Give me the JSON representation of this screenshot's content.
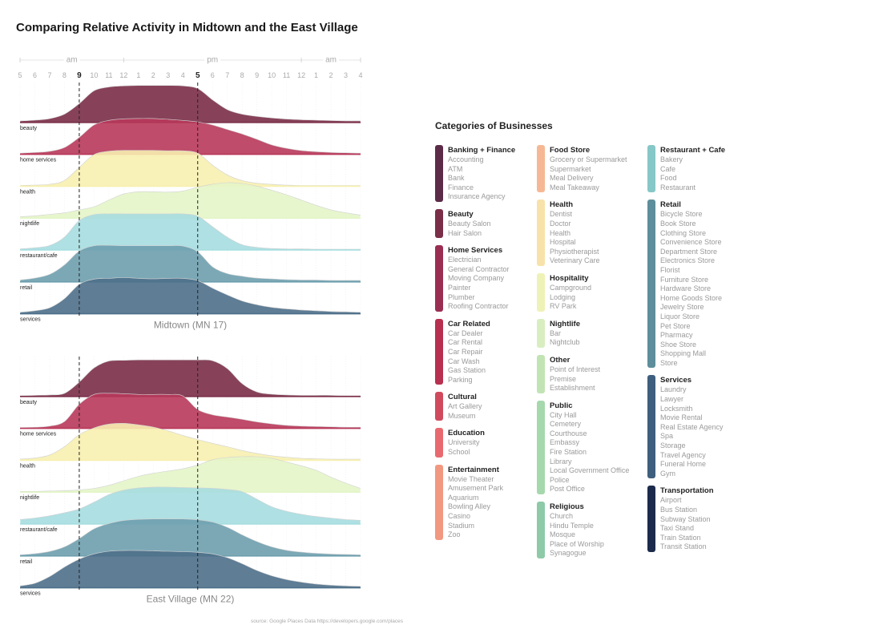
{
  "title": "Comparing Relative Activity in Midtown and the East Village",
  "source": "source: Google Places Data https://developers.google.com/places",
  "highlight_color": "#222222",
  "chart_data": {
    "type": "area",
    "subtype": "ridgeline",
    "axis": {
      "period_labels": [
        "am",
        "pm",
        "am"
      ],
      "ticks": [
        "5",
        "6",
        "7",
        "8",
        "9",
        "10",
        "11",
        "12",
        "1",
        "2",
        "3",
        "4",
        "5",
        "6",
        "7",
        "8",
        "9",
        "10",
        "11",
        "12",
        "1",
        "2",
        "3",
        "4"
      ],
      "hour_values": [
        5,
        6,
        7,
        8,
        9,
        10,
        11,
        12,
        13,
        14,
        15,
        16,
        17,
        18,
        19,
        20,
        21,
        22,
        23,
        24,
        25,
        26,
        27,
        28
      ],
      "highlight_hours": [
        9,
        17
      ],
      "xlim": [
        5,
        28
      ]
    },
    "panels": [
      {
        "name": "Midtown (MN 17)",
        "series": [
          {
            "name": "beauty",
            "color": "#7a2e48",
            "values": [
              0.04,
              0.06,
              0.1,
              0.22,
              0.5,
              0.84,
              0.94,
              0.97,
              0.98,
              0.98,
              0.98,
              0.97,
              0.9,
              0.6,
              0.34,
              0.22,
              0.16,
              0.12,
              0.09,
              0.07,
              0.06,
              0.05,
              0.04,
              0.04
            ]
          },
          {
            "name": "home services",
            "color": "#b8395a",
            "values": [
              0.03,
              0.05,
              0.08,
              0.18,
              0.45,
              0.78,
              0.9,
              0.94,
              0.95,
              0.95,
              0.93,
              0.9,
              0.86,
              0.78,
              0.66,
              0.54,
              0.4,
              0.25,
              0.16,
              0.1,
              0.07,
              0.05,
              0.04,
              0.03
            ]
          },
          {
            "name": "health",
            "color": "#f7f0b0",
            "values": [
              0.02,
              0.03,
              0.05,
              0.15,
              0.5,
              0.84,
              0.93,
              0.95,
              0.95,
              0.95,
              0.94,
              0.94,
              0.88,
              0.56,
              0.3,
              0.15,
              0.08,
              0.05,
              0.03,
              0.02,
              0.02,
              0.02,
              0.02,
              0.02
            ]
          },
          {
            "name": "nightlife",
            "color": "#e4f5c8",
            "values": [
              0.04,
              0.06,
              0.1,
              0.14,
              0.22,
              0.3,
              0.48,
              0.64,
              0.7,
              0.7,
              0.69,
              0.72,
              0.82,
              0.9,
              0.94,
              0.92,
              0.85,
              0.74,
              0.62,
              0.48,
              0.34,
              0.22,
              0.14,
              0.08
            ]
          },
          {
            "name": "restaurant/cafe",
            "color": "#a6dde0",
            "values": [
              0.03,
              0.06,
              0.12,
              0.34,
              0.78,
              0.94,
              0.96,
              0.96,
              0.96,
              0.96,
              0.96,
              0.96,
              0.9,
              0.62,
              0.34,
              0.14,
              0.07,
              0.04,
              0.03,
              0.03,
              0.02,
              0.02,
              0.02,
              0.02
            ]
          },
          {
            "name": "retail",
            "color": "#6e9fae",
            "values": [
              0.05,
              0.1,
              0.2,
              0.45,
              0.82,
              0.96,
              0.97,
              0.96,
              0.96,
              0.96,
              0.96,
              0.95,
              0.8,
              0.4,
              0.22,
              0.15,
              0.1,
              0.08,
              0.06,
              0.05,
              0.05,
              0.04,
              0.04,
              0.04
            ]
          },
          {
            "name": "services",
            "color": "#4e6f89",
            "values": [
              0.04,
              0.08,
              0.16,
              0.4,
              0.78,
              0.92,
              0.94,
              0.96,
              0.94,
              0.93,
              0.94,
              0.94,
              0.88,
              0.68,
              0.5,
              0.34,
              0.24,
              0.17,
              0.13,
              0.1,
              0.08,
              0.06,
              0.05,
              0.04
            ]
          }
        ]
      },
      {
        "name": "East Village (MN 22)",
        "series": [
          {
            "name": "beauty",
            "color": "#7a2e48",
            "values": [
              0.02,
              0.03,
              0.04,
              0.08,
              0.38,
              0.76,
              0.94,
              0.96,
              0.97,
              0.97,
              0.97,
              0.97,
              0.97,
              0.95,
              0.74,
              0.34,
              0.12,
              0.06,
              0.04,
              0.03,
              0.03,
              0.03,
              0.02,
              0.02
            ]
          },
          {
            "name": "home services",
            "color": "#b8395a",
            "values": [
              0.02,
              0.03,
              0.06,
              0.18,
              0.64,
              0.9,
              0.93,
              0.92,
              0.9,
              0.9,
              0.9,
              0.86,
              0.5,
              0.36,
              0.3,
              0.24,
              0.17,
              0.12,
              0.08,
              0.06,
              0.05,
              0.04,
              0.03,
              0.03
            ]
          },
          {
            "name": "health",
            "color": "#f7f0b0",
            "values": [
              0.03,
              0.06,
              0.14,
              0.36,
              0.68,
              0.86,
              0.96,
              0.98,
              0.94,
              0.88,
              0.78,
              0.66,
              0.55,
              0.45,
              0.36,
              0.26,
              0.18,
              0.12,
              0.08,
              0.05,
              0.04,
              0.03,
              0.03,
              0.03
            ]
          },
          {
            "name": "nightlife",
            "color": "#e4f5c8",
            "values": [
              0.02,
              0.02,
              0.03,
              0.04,
              0.06,
              0.1,
              0.18,
              0.3,
              0.42,
              0.5,
              0.56,
              0.62,
              0.72,
              0.86,
              0.92,
              0.94,
              0.94,
              0.9,
              0.8,
              0.7,
              0.58,
              0.4,
              0.24,
              0.1
            ]
          },
          {
            "name": "restaurant/cafe",
            "color": "#a6dde0",
            "values": [
              0.12,
              0.16,
              0.22,
              0.3,
              0.4,
              0.58,
              0.78,
              0.9,
              0.96,
              0.98,
              0.98,
              0.97,
              0.96,
              0.95,
              0.92,
              0.86,
              0.66,
              0.46,
              0.34,
              0.26,
              0.2,
              0.16,
              0.12,
              0.1
            ]
          },
          {
            "name": "retail",
            "color": "#6e9fae",
            "values": [
              0.03,
              0.06,
              0.12,
              0.24,
              0.46,
              0.72,
              0.86,
              0.94,
              0.97,
              0.98,
              0.98,
              0.98,
              0.96,
              0.9,
              0.76,
              0.56,
              0.38,
              0.24,
              0.15,
              0.1,
              0.07,
              0.05,
              0.04,
              0.03
            ]
          },
          {
            "name": "services",
            "color": "#4e6f89",
            "values": [
              0.05,
              0.12,
              0.3,
              0.55,
              0.76,
              0.9,
              0.97,
              0.99,
              0.99,
              0.98,
              0.97,
              0.96,
              0.94,
              0.9,
              0.8,
              0.64,
              0.46,
              0.32,
              0.22,
              0.15,
              0.1,
              0.07,
              0.05,
              0.04
            ]
          }
        ]
      }
    ]
  },
  "legend": {
    "title": "Categories of Businesses",
    "columns": [
      [
        {
          "name": "Banking + Finance",
          "color": "#5c2b47",
          "items": [
            "Accounting",
            "ATM",
            "Bank",
            "Finance",
            "Insurance Agency"
          ]
        },
        {
          "name": "Beauty",
          "color": "#7a2e48",
          "items": [
            "Beauty Salon",
            "Hair Salon"
          ]
        },
        {
          "name": "Home Services",
          "color": "#9a2e52",
          "items": [
            "Electrician",
            "General Contractor",
            "Moving Company",
            "Painter",
            "Plumber",
            "Roofing Contractor"
          ]
        },
        {
          "name": "Car Related",
          "color": "#b8304f",
          "items": [
            "Car Dealer",
            "Car Rental",
            "Car Repair",
            "Car Wash",
            "Gas Station",
            "Parking"
          ]
        },
        {
          "name": "Cultural",
          "color": "#d04a5e",
          "items": [
            "Art Gallery",
            "Museum"
          ]
        },
        {
          "name": "Education",
          "color": "#e86a70",
          "items": [
            "University",
            "School"
          ]
        },
        {
          "name": "Entertainment",
          "color": "#f29880",
          "items": [
            "Movie Theater",
            "Amusement Park",
            "Aquarium",
            "Bowling Alley",
            "Casino",
            "Stadium",
            "Zoo"
          ]
        }
      ],
      [
        {
          "name": "Food Store",
          "color": "#f6b894",
          "items": [
            "Grocery or Supermarket",
            "Supermarket",
            "Meal Delivery",
            "Meal Takeaway"
          ]
        },
        {
          "name": "Health",
          "color": "#f7e2aa",
          "items": [
            "Dentist",
            "Doctor",
            "Health",
            "Hospital",
            "Physiotherapist",
            "Veterinary Care"
          ]
        },
        {
          "name": "Hospitality",
          "color": "#eff2b6",
          "items": [
            "Campground",
            "Lodging",
            "RV Park"
          ]
        },
        {
          "name": "Nightlife",
          "color": "#d8eec0",
          "items": [
            "Bar",
            "Nightclub"
          ]
        },
        {
          "name": "Other",
          "color": "#c2e4b4",
          "items": [
            "Point of Interest",
            "Premise",
            "Establishment"
          ]
        },
        {
          "name": "Public",
          "color": "#a6d8ae",
          "items": [
            "City Hall",
            "Cemetery",
            "Courthouse",
            "Embassy",
            "Fire Station",
            "Library",
            "Local Government Office",
            "Police",
            "Post Office"
          ]
        },
        {
          "name": "Religious",
          "color": "#8ecaa8",
          "items": [
            "Church",
            "Hindu Temple",
            "Mosque",
            "Place of Worship",
            "Synagogue"
          ]
        }
      ],
      [
        {
          "name": "Restaurant + Cafe",
          "color": "#86c7c8",
          "items": [
            "Bakery",
            "Cafe",
            "Food",
            "Restaurant"
          ]
        },
        {
          "name": "Retail",
          "color": "#5e8e9b",
          "items": [
            "Bicycle Store",
            "Book Store",
            "Clothing Store",
            "Convenience Store",
            "Department Store",
            "Electronics Store",
            "Florist",
            "Furniture Store",
            "Hardware Store",
            "Home Goods Store",
            "Jewelry Store",
            "Liquor Store",
            "Pet Store",
            "Pharmacy",
            "Shoe Store",
            "Shopping Mall",
            "Store"
          ]
        },
        {
          "name": "Services",
          "color": "#3f5f7e",
          "items": [
            "Laundry",
            "Lawyer",
            "Locksmith",
            "Movie Rental",
            "Real Estate Agency",
            "Spa",
            "Storage",
            "Travel Agency",
            "Funeral Home",
            "Gym"
          ]
        },
        {
          "name": "Transportation",
          "color": "#1c2a4c",
          "items": [
            "Airport",
            "Bus Station",
            "Subway Station",
            "Taxi Stand",
            "Train Station",
            "Transit Station"
          ]
        }
      ]
    ]
  }
}
